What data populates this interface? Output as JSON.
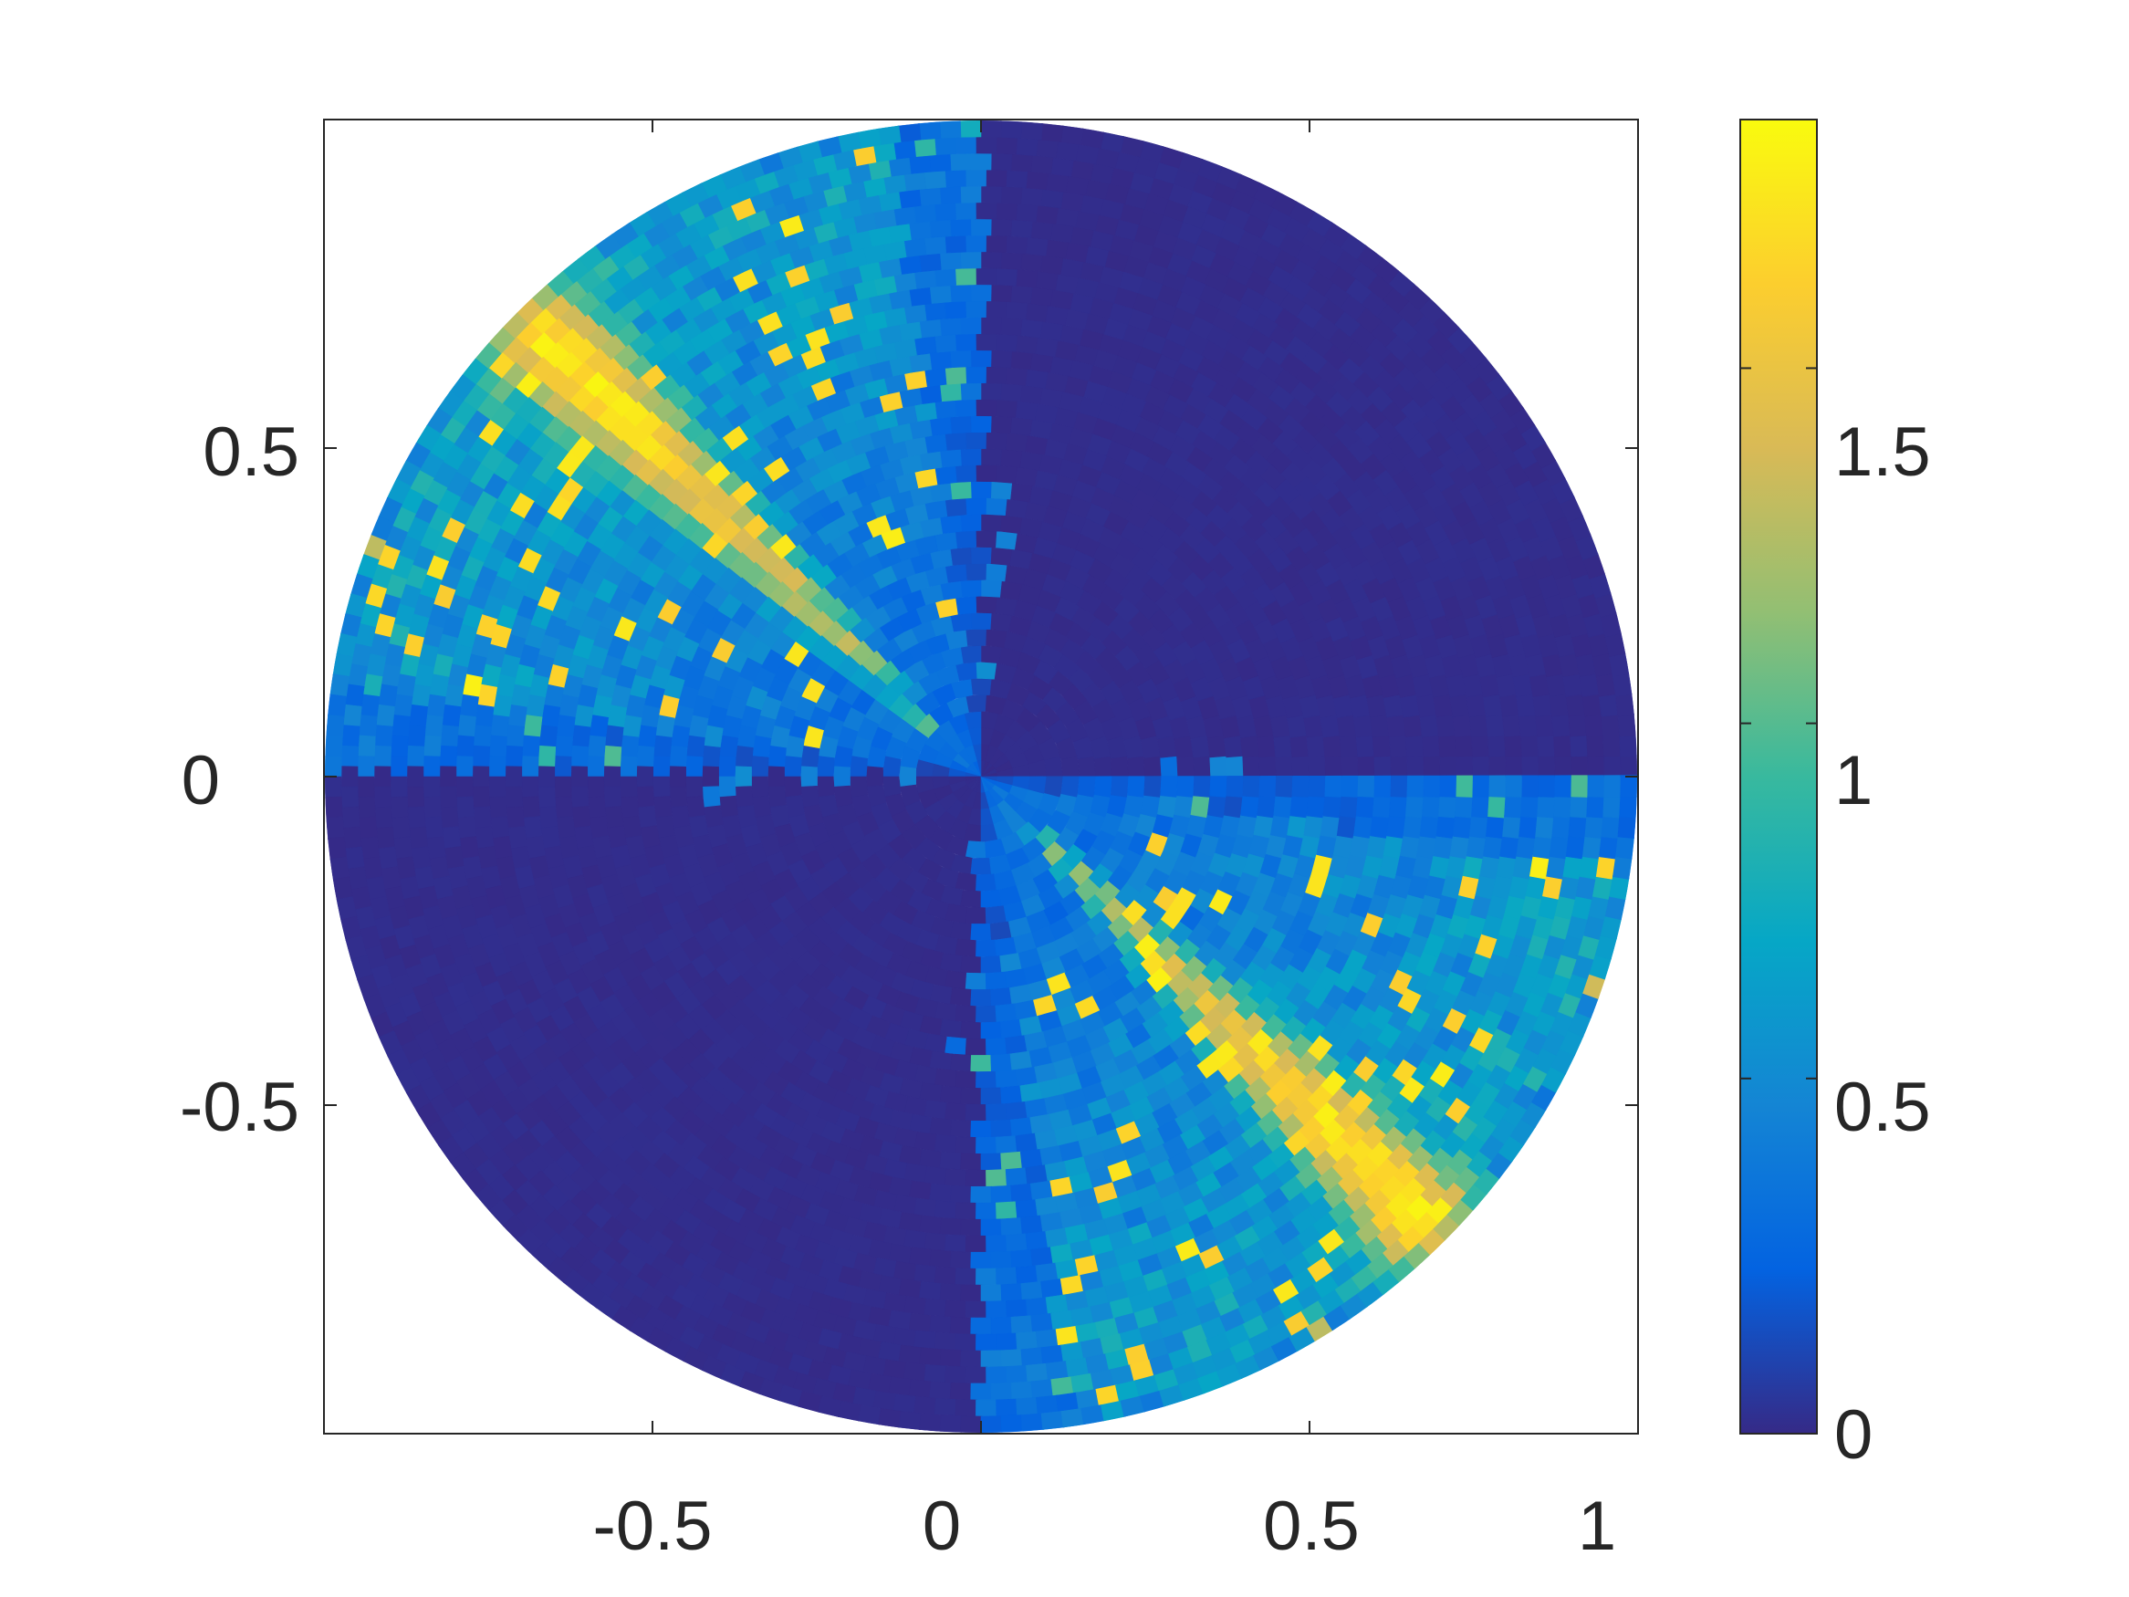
{
  "chart_data": {
    "type": "heatmap",
    "subtype": "polar-sector-heatmap",
    "title": "",
    "xlabel": "",
    "ylabel": "",
    "xlim": [
      -1,
      1
    ],
    "ylim": [
      -1,
      1
    ],
    "xticks": [
      -0.5,
      0,
      0.5,
      1
    ],
    "xtick_labels": [
      "-0.5",
      "0",
      "0.5",
      "1"
    ],
    "yticks": [
      -0.5,
      0,
      0.5
    ],
    "ytick_labels": [
      "-0.5",
      "0",
      "0.5"
    ],
    "domain_radius": 1,
    "grid": false,
    "colormap": "parula",
    "colorbar": {
      "location": "right",
      "range": [
        0,
        1.85
      ],
      "ticks": [
        0,
        0.5,
        1,
        1.5
      ],
      "tick_labels": [
        "0",
        "0.5",
        "1",
        "1.5"
      ]
    },
    "field_description": {
      "peak_band_angle_deg": -45,
      "band_peak_value": 1.85,
      "band_value_near_center": 1.0,
      "dark_quadrants": [
        "upper-right (0° to 90°)",
        "lower-left (180° to 270°)"
      ],
      "dark_value": 0.0,
      "active_quadrants_base_value": 0.5
    },
    "colors": {
      "c0": "#352a87",
      "c1": "#0363e1",
      "c2": "#1485d4",
      "c3": "#06a7c6",
      "c4": "#38b99e",
      "c5": "#92bf73",
      "c6": "#d9ba56",
      "c7": "#fcce2e",
      "c8": "#f9fb0e"
    }
  }
}
